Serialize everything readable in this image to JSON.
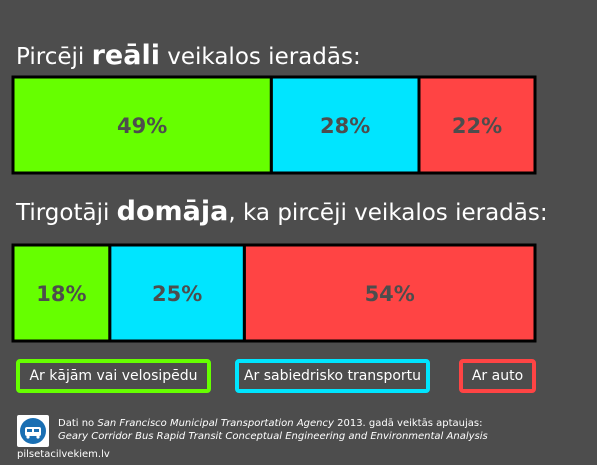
{
  "chart_data": [
    {
      "type": "stacked-bar",
      "title": {
        "prefix": "Pircēji ",
        "bold": "reāli",
        "suffix": " veikalos ieradās:"
      },
      "segments": [
        {
          "category": "Ar kājām vai velosipēdu",
          "value": 49,
          "label": "49%",
          "color": "#66ff00"
        },
        {
          "category": "Ar sabiedrisko transportu",
          "value": 28,
          "label": "28%",
          "color": "#00e5ff"
        },
        {
          "category": "Ar auto",
          "value": 22,
          "label": "22%",
          "color": "#ff4444"
        }
      ]
    },
    {
      "type": "stacked-bar",
      "title": {
        "prefix": "Tirgotāji ",
        "bold": "domāja",
        "suffix": ", ka pircēji veikalos ieradās:"
      },
      "segments": [
        {
          "category": "Ar kājām vai velosipēdu",
          "value": 18,
          "label": "18%",
          "color": "#66ff00"
        },
        {
          "category": "Ar sabiedrisko transportu",
          "value": 25,
          "label": "25%",
          "color": "#00e5ff"
        },
        {
          "category": "Ar auto",
          "value": 54,
          "label": "54%",
          "color": "#ff4444"
        }
      ]
    }
  ],
  "legend": [
    {
      "label": "Ar kājām vai velosipēdu",
      "color": "#66ff00"
    },
    {
      "label": "Ar sabiedrisko transportu",
      "color": "#00e5ff"
    },
    {
      "label": "Ar auto",
      "color": "#ff4444"
    }
  ],
  "source": {
    "line1_prefix": "Dati no ",
    "line1_agency": "San Francisco Municipal Transportation Agency",
    "line1_suffix": " 2013. gadā veiktās aptaujas:",
    "line2": "Geary Corridor Bus Rapid Transit Conceptual Engineering and Environmental Analysis",
    "logo_icon": "transit-logo-icon"
  },
  "website": "pilsetacilvekiem.lv"
}
